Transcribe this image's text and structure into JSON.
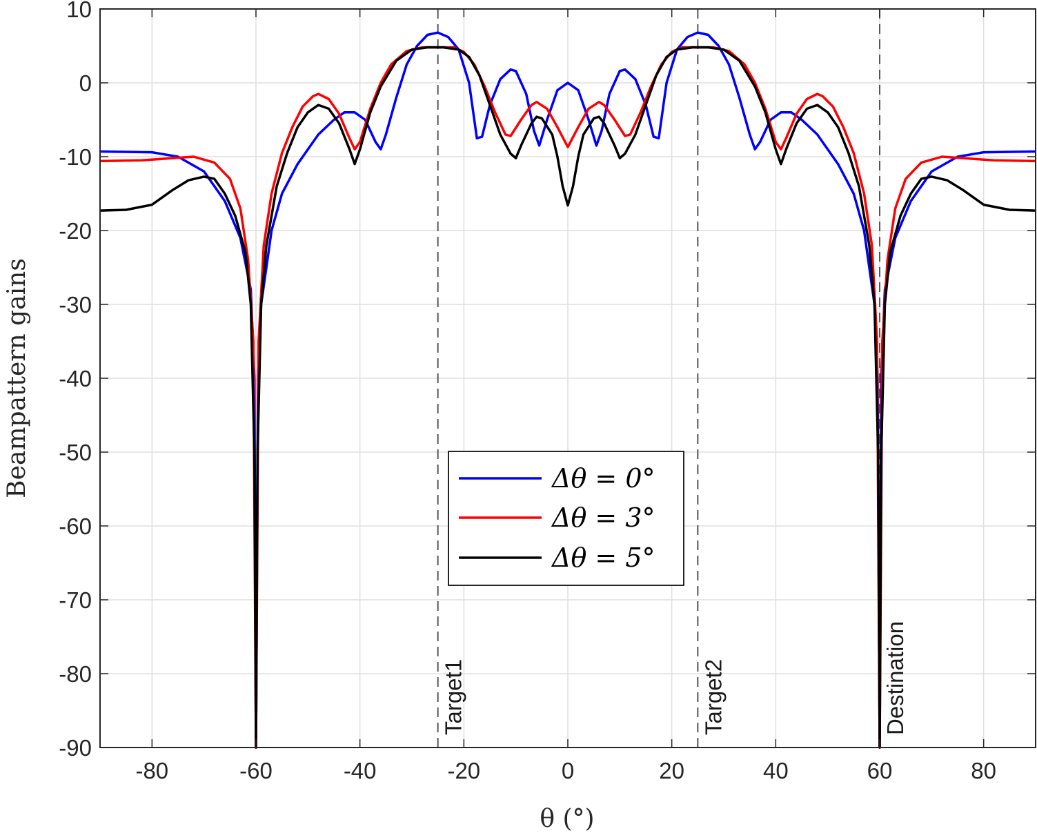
{
  "chart_data": {
    "type": "line",
    "xlabel": "θ (°)",
    "ylabel": "Beampattern gains",
    "xlim": [
      -90,
      90
    ],
    "ylim": [
      -90,
      10
    ],
    "x_ticks": [
      -80,
      -60,
      -40,
      -20,
      0,
      20,
      40,
      60,
      80
    ],
    "y_ticks": [
      10,
      0,
      -10,
      -20,
      -30,
      -40,
      -50,
      -60,
      -70,
      -80,
      -90
    ],
    "grid": true,
    "legend_position": "center",
    "vertical_markers": [
      {
        "x": -25,
        "label": "Target1"
      },
      {
        "x": 25,
        "label": "Target2"
      },
      {
        "x": 60,
        "label": "Destination"
      }
    ],
    "series": [
      {
        "name": "Δθ = 0°",
        "color": "#0000ff",
        "points": [
          [
            -90,
            -9.3
          ],
          [
            -80,
            -9.4
          ],
          [
            -75,
            -10
          ],
          [
            -70,
            -12
          ],
          [
            -66,
            -16
          ],
          [
            -63,
            -21
          ],
          [
            -61,
            -28
          ],
          [
            -60.3,
            -40
          ],
          [
            -60,
            -90
          ],
          [
            -59.6,
            -40
          ],
          [
            -59,
            -30
          ],
          [
            -58,
            -25
          ],
          [
            -57,
            -20
          ],
          [
            -55,
            -15
          ],
          [
            -52,
            -11
          ],
          [
            -48,
            -7
          ],
          [
            -45,
            -5
          ],
          [
            -43,
            -4
          ],
          [
            -41,
            -4
          ],
          [
            -39,
            -5
          ],
          [
            -37,
            -8
          ],
          [
            -36,
            -9
          ],
          [
            -35,
            -7
          ],
          [
            -33,
            -2
          ],
          [
            -31,
            2.5
          ],
          [
            -29,
            5
          ],
          [
            -27,
            6.5
          ],
          [
            -25,
            6.8
          ],
          [
            -23,
            6.2
          ],
          [
            -21,
            4.5
          ],
          [
            -19,
            0
          ],
          [
            -17.5,
            -7.5
          ],
          [
            -16.5,
            -7.3
          ],
          [
            -15,
            -3
          ],
          [
            -13,
            0.5
          ],
          [
            -11,
            1.8
          ],
          [
            -10,
            1.6
          ],
          [
            -8,
            -1.5
          ],
          [
            -6.5,
            -6.5
          ],
          [
            -5.5,
            -8.5
          ],
          [
            -4,
            -5
          ],
          [
            -2,
            -1
          ],
          [
            0,
            0
          ],
          [
            2,
            -1
          ],
          [
            4,
            -5
          ],
          [
            5.5,
            -8.5
          ],
          [
            6.5,
            -6.5
          ],
          [
            8,
            -1.5
          ],
          [
            10,
            1.6
          ],
          [
            11,
            1.8
          ],
          [
            13,
            0.5
          ],
          [
            15,
            -3
          ],
          [
            16.5,
            -7.3
          ],
          [
            17.5,
            -7.5
          ],
          [
            19,
            0
          ],
          [
            21,
            4.5
          ],
          [
            23,
            6.2
          ],
          [
            25,
            6.8
          ],
          [
            27,
            6.5
          ],
          [
            29,
            5
          ],
          [
            31,
            2.5
          ],
          [
            33,
            -2
          ],
          [
            35,
            -7
          ],
          [
            36,
            -9
          ],
          [
            37,
            -8
          ],
          [
            39,
            -5
          ],
          [
            41,
            -4
          ],
          [
            43,
            -4
          ],
          [
            45,
            -5
          ],
          [
            48,
            -7
          ],
          [
            52,
            -11
          ],
          [
            55,
            -15
          ],
          [
            57,
            -20
          ],
          [
            58,
            -25
          ],
          [
            59,
            -30
          ],
          [
            59.6,
            -40
          ],
          [
            60,
            -90
          ],
          [
            60.3,
            -40
          ],
          [
            61,
            -28
          ],
          [
            63,
            -21
          ],
          [
            66,
            -16
          ],
          [
            70,
            -12
          ],
          [
            75,
            -10
          ],
          [
            80,
            -9.4
          ],
          [
            90,
            -9.3
          ]
        ]
      },
      {
        "name": "Δθ = 3°",
        "color": "#ff0000",
        "points": [
          [
            -90,
            -10.6
          ],
          [
            -82,
            -10.5
          ],
          [
            -76,
            -10.2
          ],
          [
            -72,
            -10
          ],
          [
            -68,
            -10.8
          ],
          [
            -65,
            -13
          ],
          [
            -63,
            -17
          ],
          [
            -61.5,
            -24
          ],
          [
            -60.5,
            -35
          ],
          [
            -60,
            -90
          ],
          [
            -59.5,
            -35
          ],
          [
            -58.5,
            -22
          ],
          [
            -57,
            -15
          ],
          [
            -55,
            -9.5
          ],
          [
            -53,
            -6
          ],
          [
            -51,
            -3.2
          ],
          [
            -49,
            -1.8
          ],
          [
            -48,
            -1.5
          ],
          [
            -46,
            -2.2
          ],
          [
            -44,
            -4.2
          ],
          [
            -42,
            -7.5
          ],
          [
            -41,
            -9
          ],
          [
            -40,
            -8
          ],
          [
            -38,
            -3.5
          ],
          [
            -36,
            0
          ],
          [
            -34,
            2.5
          ],
          [
            -31,
            4.3
          ],
          [
            -28,
            4.8
          ],
          [
            -25,
            4.8
          ],
          [
            -22,
            4.8
          ],
          [
            -20,
            4.2
          ],
          [
            -18,
            2.5
          ],
          [
            -16,
            -0.5
          ],
          [
            -14,
            -4
          ],
          [
            -12,
            -7
          ],
          [
            -11,
            -7.2
          ],
          [
            -9,
            -5
          ],
          [
            -7,
            -3
          ],
          [
            -6,
            -2.6
          ],
          [
            -4,
            -3.5
          ],
          [
            -2,
            -6
          ],
          [
            0,
            -8.7
          ],
          [
            2,
            -6
          ],
          [
            4,
            -3.5
          ],
          [
            6,
            -2.6
          ],
          [
            7,
            -3
          ],
          [
            9,
            -5
          ],
          [
            11,
            -7.2
          ],
          [
            12,
            -7
          ],
          [
            14,
            -4
          ],
          [
            16,
            -0.5
          ],
          [
            18,
            2.5
          ],
          [
            20,
            4.2
          ],
          [
            22,
            4.8
          ],
          [
            25,
            4.8
          ],
          [
            28,
            4.8
          ],
          [
            31,
            4.3
          ],
          [
            34,
            2.5
          ],
          [
            36,
            0
          ],
          [
            38,
            -3.5
          ],
          [
            40,
            -8
          ],
          [
            41,
            -9
          ],
          [
            42,
            -7.5
          ],
          [
            44,
            -4.2
          ],
          [
            46,
            -2.2
          ],
          [
            48,
            -1.5
          ],
          [
            49,
            -1.8
          ],
          [
            51,
            -3.2
          ],
          [
            53,
            -6
          ],
          [
            55,
            -9.5
          ],
          [
            57,
            -15
          ],
          [
            58.5,
            -22
          ],
          [
            59.5,
            -35
          ],
          [
            60,
            -90
          ],
          [
            60.5,
            -35
          ],
          [
            61.5,
            -24
          ],
          [
            63,
            -17
          ],
          [
            65,
            -13
          ],
          [
            68,
            -10.8
          ],
          [
            72,
            -10
          ],
          [
            76,
            -10.2
          ],
          [
            82,
            -10.5
          ],
          [
            90,
            -10.6
          ]
        ]
      },
      {
        "name": "Δθ = 5°",
        "color": "#000000",
        "points": [
          [
            -90,
            -17.3
          ],
          [
            -85,
            -17.2
          ],
          [
            -80,
            -16.5
          ],
          [
            -76,
            -14.5
          ],
          [
            -73,
            -13.2
          ],
          [
            -70,
            -12.7
          ],
          [
            -68,
            -13
          ],
          [
            -66,
            -15
          ],
          [
            -64,
            -18
          ],
          [
            -62,
            -23
          ],
          [
            -61,
            -30
          ],
          [
            -60.3,
            -50
          ],
          [
            -60,
            -90
          ],
          [
            -59.7,
            -50
          ],
          [
            -59,
            -30
          ],
          [
            -58,
            -22
          ],
          [
            -56,
            -14
          ],
          [
            -54,
            -9.5
          ],
          [
            -52,
            -6
          ],
          [
            -50,
            -4
          ],
          [
            -48,
            -3
          ],
          [
            -46,
            -3.5
          ],
          [
            -44,
            -5.5
          ],
          [
            -42,
            -9
          ],
          [
            -41,
            -11
          ],
          [
            -40,
            -9
          ],
          [
            -38,
            -4
          ],
          [
            -36,
            -0.5
          ],
          [
            -33,
            3
          ],
          [
            -30,
            4.5
          ],
          [
            -27,
            4.8
          ],
          [
            -24,
            4.8
          ],
          [
            -21,
            4.5
          ],
          [
            -19,
            3.5
          ],
          [
            -17,
            1
          ],
          [
            -15,
            -3
          ],
          [
            -13,
            -7
          ],
          [
            -11,
            -9.6
          ],
          [
            -10,
            -10.2
          ],
          [
            -9,
            -8.5
          ],
          [
            -7,
            -5.5
          ],
          [
            -6,
            -4.6
          ],
          [
            -5,
            -4.8
          ],
          [
            -3,
            -7
          ],
          [
            -2,
            -10
          ],
          [
            -1,
            -14
          ],
          [
            0,
            -16.6
          ],
          [
            1,
            -14
          ],
          [
            2,
            -10
          ],
          [
            3,
            -7
          ],
          [
            5,
            -4.8
          ],
          [
            6,
            -4.6
          ],
          [
            7,
            -5.5
          ],
          [
            9,
            -8.5
          ],
          [
            10,
            -10.2
          ],
          [
            11,
            -9.6
          ],
          [
            13,
            -7
          ],
          [
            15,
            -3
          ],
          [
            17,
            1
          ],
          [
            19,
            3.5
          ],
          [
            21,
            4.5
          ],
          [
            24,
            4.8
          ],
          [
            27,
            4.8
          ],
          [
            30,
            4.5
          ],
          [
            33,
            3
          ],
          [
            36,
            -0.5
          ],
          [
            38,
            -4
          ],
          [
            40,
            -9
          ],
          [
            41,
            -11
          ],
          [
            42,
            -9
          ],
          [
            44,
            -5.5
          ],
          [
            46,
            -3.5
          ],
          [
            48,
            -3
          ],
          [
            50,
            -4
          ],
          [
            52,
            -6
          ],
          [
            54,
            -9.5
          ],
          [
            56,
            -14
          ],
          [
            58,
            -22
          ],
          [
            59,
            -30
          ],
          [
            59.7,
            -50
          ],
          [
            60,
            -90
          ],
          [
            60.3,
            -50
          ],
          [
            61,
            -30
          ],
          [
            62,
            -23
          ],
          [
            64,
            -18
          ],
          [
            66,
            -15
          ],
          [
            68,
            -13
          ],
          [
            70,
            -12.7
          ],
          [
            73,
            -13.2
          ],
          [
            76,
            -14.5
          ],
          [
            80,
            -16.5
          ],
          [
            85,
            -17.2
          ],
          [
            90,
            -17.3
          ]
        ]
      }
    ]
  }
}
